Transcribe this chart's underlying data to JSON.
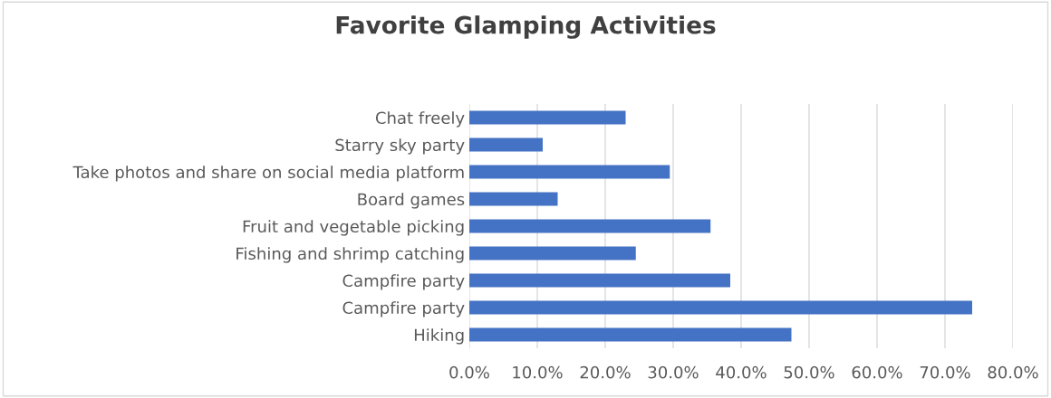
{
  "chart_data": {
    "type": "bar",
    "orientation": "horizontal",
    "title": "Favorite Glamping Activities",
    "categories": [
      "Chat freely",
      "Starry sky party",
      "Take photos and share on social media platform",
      "Board games",
      "Fruit and vegetable picking",
      "Fishing and shrimp catching",
      "Campfire party",
      "Campfire party",
      "Hiking"
    ],
    "values": [
      23.0,
      10.8,
      29.5,
      13.0,
      35.5,
      24.5,
      38.4,
      74.0,
      47.4
    ],
    "color": "#4472c4",
    "xlim": [
      0,
      80
    ],
    "xticks": [
      {
        "value": 0,
        "label": "0.0%"
      },
      {
        "value": 10,
        "label": "10.0%"
      },
      {
        "value": 20,
        "label": "20.0%"
      },
      {
        "value": 30,
        "label": "30.0%"
      },
      {
        "value": 40,
        "label": "40.0%"
      },
      {
        "value": 50,
        "label": "50.0%"
      },
      {
        "value": 60,
        "label": "60.0%"
      },
      {
        "value": 70,
        "label": "70.0%"
      },
      {
        "value": 80,
        "label": "80.0%"
      }
    ],
    "grid": "x"
  }
}
